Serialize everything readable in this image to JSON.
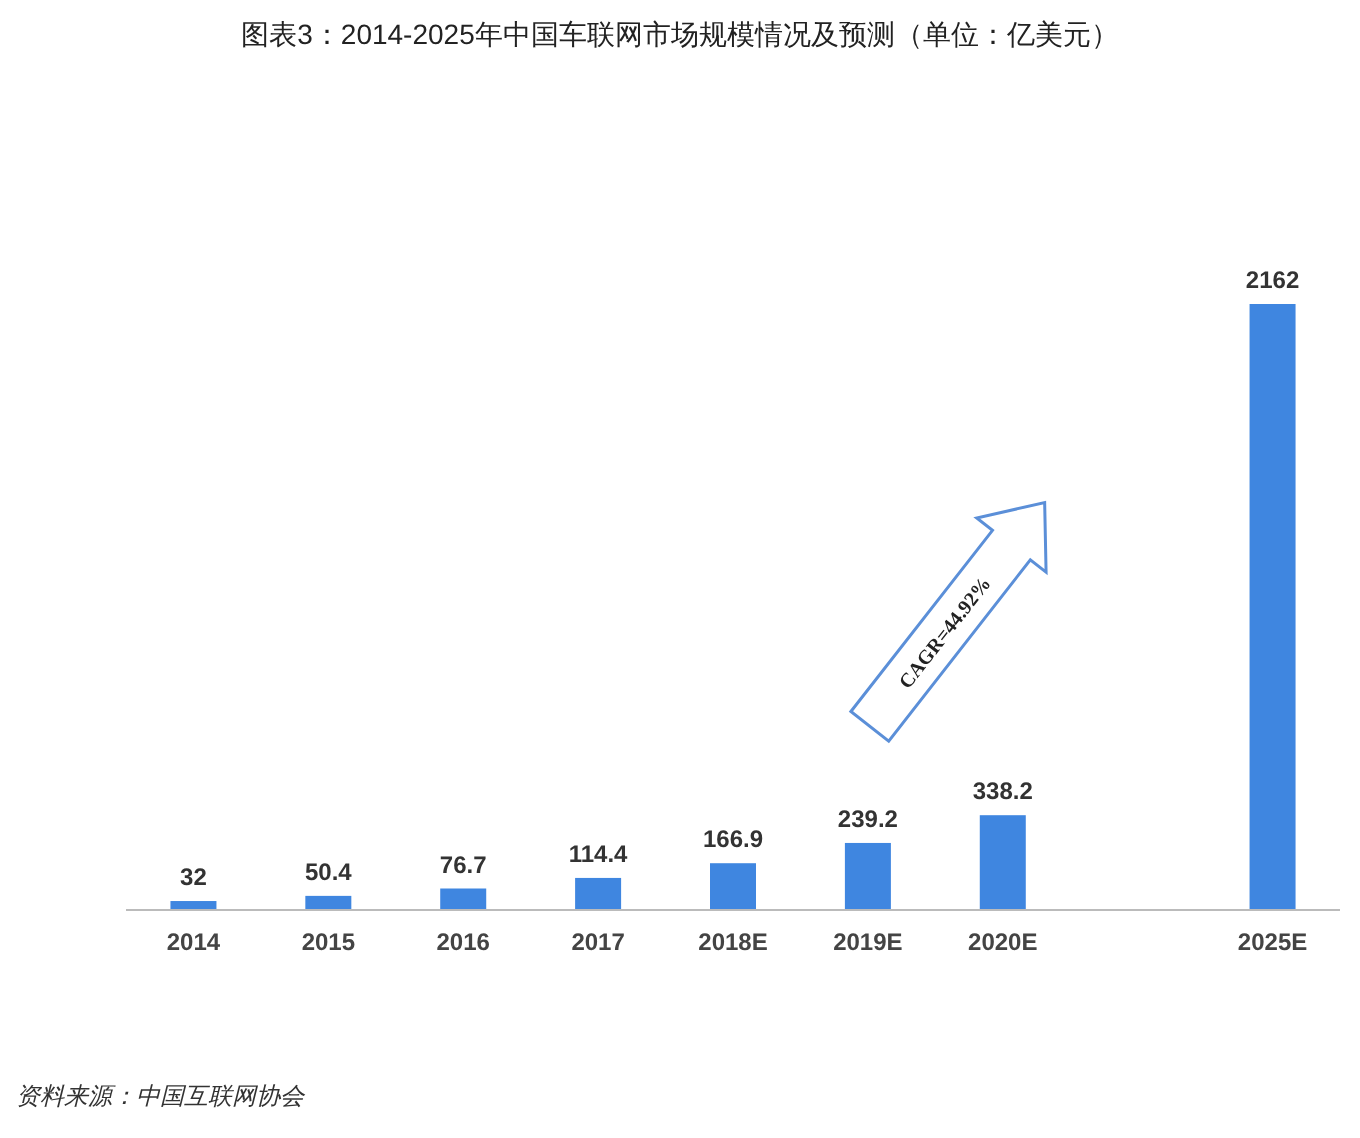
{
  "chart_data": {
    "type": "bar",
    "title": "图表3：2014-2025年中国车联网市场规模情况及预测（单位：亿美元）",
    "categories": [
      "2014",
      "2015",
      "2016",
      "2017",
      "2018E",
      "2019E",
      "2020E",
      null,
      "2025E"
    ],
    "values": [
      32,
      50.4,
      76.7,
      114.4,
      166.9,
      239.2,
      338.2,
      null,
      2162
    ],
    "color": "#3f86e0",
    "data_labels": true,
    "annotations": [
      "CAGR=44.92%",
      "资料来源：中国互联网协会"
    ]
  }
}
